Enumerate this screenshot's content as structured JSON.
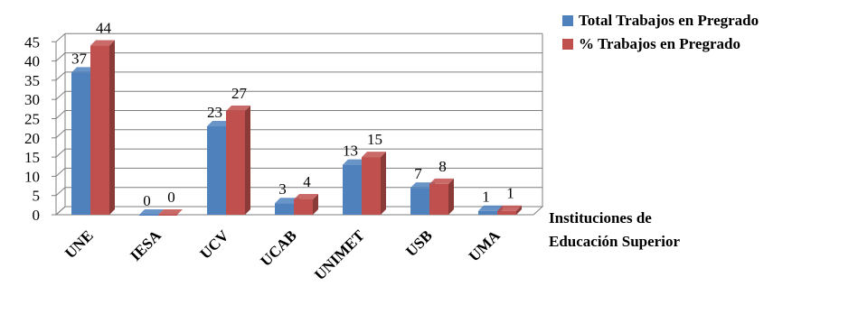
{
  "chart_data": {
    "type": "bar",
    "categories": [
      "UNE",
      "IESA",
      "UCV",
      "UCAB",
      "UNIMET",
      "USB",
      "UMA"
    ],
    "series": [
      {
        "name": "Total Trabajos en Pregrado",
        "values": [
          37,
          0,
          23,
          3,
          13,
          7,
          1
        ],
        "color": "#4f81bd"
      },
      {
        "name": "% Trabajos en Pregrado",
        "values": [
          44,
          0,
          27,
          4,
          15,
          8,
          1
        ],
        "color": "#c0504d"
      }
    ],
    "ylim": [
      0,
      45
    ],
    "yticks": [
      0,
      5,
      10,
      15,
      20,
      25,
      30,
      35,
      40,
      45
    ],
    "xlabel_line1": "Instituciones de",
    "xlabel_line2": "Educación Superior",
    "grid": true,
    "legend_position": "top-right",
    "style": "3d"
  }
}
